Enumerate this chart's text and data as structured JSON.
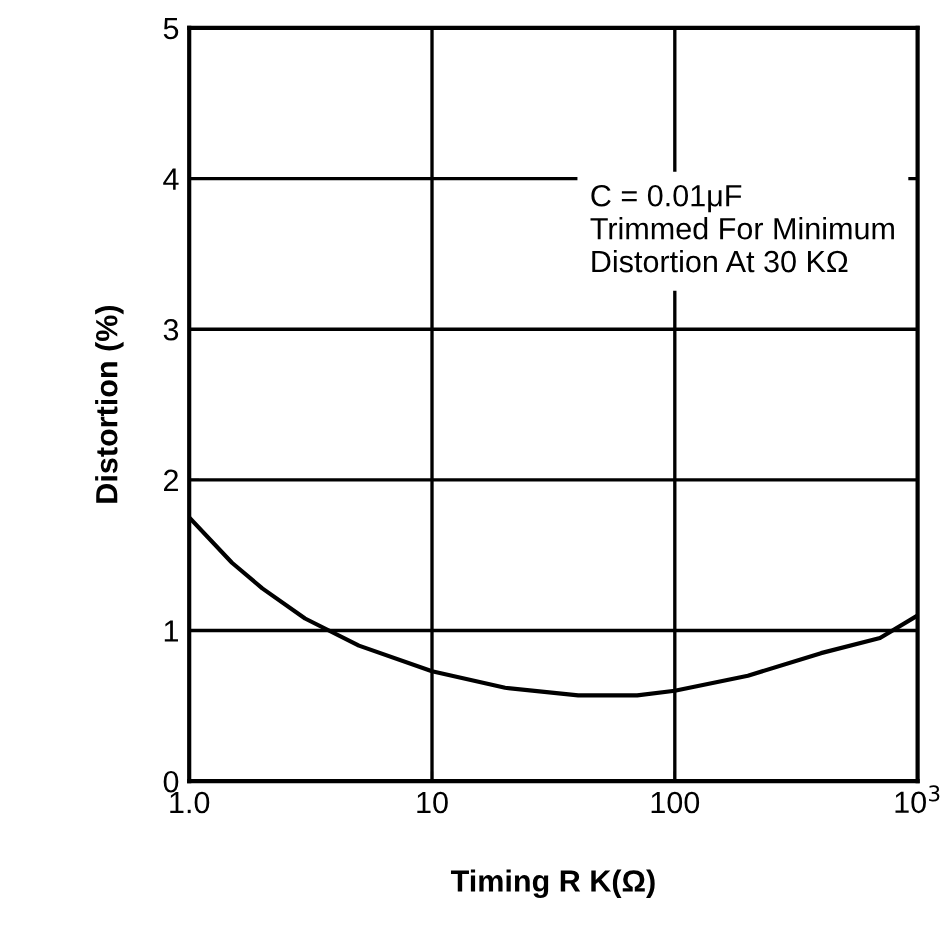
{
  "chart_data": {
    "type": "line",
    "xlabel": "Timing R K(Ω)",
    "ylabel": "Distortion (%)",
    "annotations": [
      "C = 0.01μF\nTrimmed For Minimum\nDistortion At 30 KΩ"
    ],
    "x": [
      1,
      1.5,
      2,
      3,
      5,
      10,
      20,
      40,
      70,
      100,
      200,
      400,
      700,
      1000
    ],
    "series": [
      {
        "color": "#000000",
        "values": [
          1.75,
          1.45,
          1.28,
          1.08,
          0.9,
          0.73,
          0.62,
          0.57,
          0.57,
          0.6,
          0.7,
          0.85,
          0.95,
          1.1
        ]
      }
    ],
    "log": "x",
    "xlim": [
      1,
      1000
    ],
    "xticks": [
      {
        "value": 1,
        "label": "1.0"
      },
      10,
      100,
      {
        "value": 1000,
        "label": "10$^{3}$"
      }
    ],
    "ylim": [
      0,
      5
    ],
    "yticks": [
      0,
      1,
      2,
      3,
      4,
      5
    ],
    "grid": true,
    "marker": "none",
    "line_style": "solid"
  }
}
